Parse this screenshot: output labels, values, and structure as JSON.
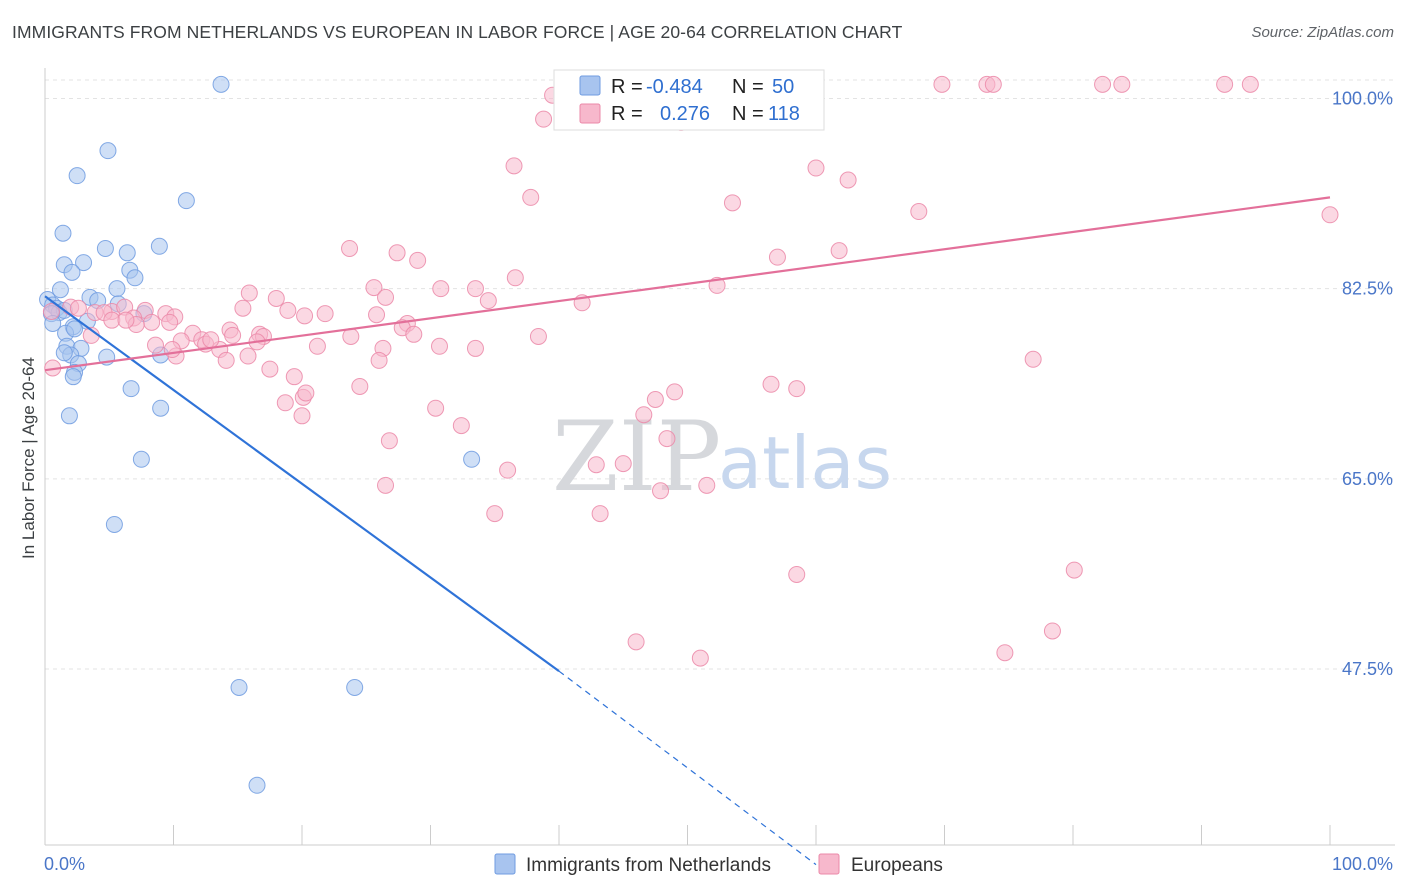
{
  "title": "IMMIGRANTS FROM NETHERLANDS VS EUROPEAN IN LABOR FORCE | AGE 20-64 CORRELATION CHART",
  "source": "Source: ZipAtlas.com",
  "watermark": {
    "zip": "ZIP",
    "atlas": "atlas"
  },
  "legend": {
    "r_label": "R =",
    "n_label": "N =",
    "rows": [
      {
        "r": "-0.484",
        "n": "50",
        "color": "#a8c4ef",
        "stroke": "#6f9be0"
      },
      {
        "r": "0.276",
        "n": "118",
        "color": "#f7b8cc",
        "stroke": "#eb88a8"
      }
    ]
  },
  "bottom_legend": {
    "items": [
      {
        "label": "Immigrants from Netherlands",
        "color": "#a8c4ef",
        "stroke": "#6f9be0"
      },
      {
        "label": "Europeans",
        "color": "#f7b8cc",
        "stroke": "#eb88a8"
      }
    ]
  },
  "chart_data": {
    "type": "scatter",
    "title": "IMMIGRANTS FROM NETHERLANDS VS EUROPEAN IN LABOR FORCE | AGE 20-64 CORRELATION CHART",
    "xlabel": "",
    "ylabel": "In Labor Force | Age 20-64",
    "xlim": [
      0,
      105
    ],
    "ylim": [
      29,
      101.5
    ],
    "x_tick_labels": [
      "0.0%",
      "100.0%"
    ],
    "y_ticks": [
      47.5,
      65.0,
      82.5,
      100.0
    ],
    "y_tick_labels": [
      "47.5%",
      "65.0%",
      "82.5%",
      "100.0%"
    ],
    "grid": true,
    "series": [
      {
        "name": "Immigrants from Netherlands",
        "color": "#6f9be0",
        "fill": "#a8c4ef",
        "points": [
          [
            13.7,
            101.3
          ],
          [
            4.9,
            95.2
          ],
          [
            2.5,
            92.9
          ],
          [
            11.0,
            90.6
          ],
          [
            1.4,
            87.6
          ],
          [
            4.7,
            86.2
          ],
          [
            8.9,
            86.4
          ],
          [
            1.5,
            84.7
          ],
          [
            3.0,
            84.9
          ],
          [
            6.4,
            85.8
          ],
          [
            2.1,
            84.0
          ],
          [
            6.6,
            84.2
          ],
          [
            7.0,
            83.5
          ],
          [
            5.6,
            82.5
          ],
          [
            1.2,
            82.4
          ],
          [
            0.2,
            81.5
          ],
          [
            0.6,
            81.0
          ],
          [
            3.5,
            81.7
          ],
          [
            4.1,
            81.4
          ],
          [
            5.7,
            81.1
          ],
          [
            0.9,
            80.7
          ],
          [
            1.1,
            80.3
          ],
          [
            1.5,
            80.5
          ],
          [
            0.5,
            80.2
          ],
          [
            7.7,
            80.2
          ],
          [
            0.6,
            79.3
          ],
          [
            3.3,
            79.5
          ],
          [
            2.2,
            79.0
          ],
          [
            1.6,
            78.4
          ],
          [
            2.3,
            78.8
          ],
          [
            1.7,
            77.2
          ],
          [
            2.8,
            77.0
          ],
          [
            2.0,
            76.4
          ],
          [
            1.5,
            76.6
          ],
          [
            4.8,
            76.2
          ],
          [
            9.0,
            76.4
          ],
          [
            2.6,
            75.6
          ],
          [
            2.3,
            74.8
          ],
          [
            2.2,
            74.4
          ],
          [
            6.7,
            73.3
          ],
          [
            9.0,
            71.5
          ],
          [
            1.9,
            70.8
          ],
          [
            7.5,
            66.8
          ],
          [
            33.2,
            66.8
          ],
          [
            5.4,
            60.8
          ],
          [
            15.1,
            45.8
          ],
          [
            24.1,
            45.8
          ],
          [
            16.5,
            36.8
          ]
        ]
      },
      {
        "name": "Europeans",
        "color": "#eb88a8",
        "fill": "#f7b8cc",
        "points": [
          [
            40.8,
            101.3
          ],
          [
            41.2,
            101.3
          ],
          [
            49.5,
            101.3
          ],
          [
            49.8,
            101.3
          ],
          [
            50.2,
            101.3
          ],
          [
            56.5,
            101.3
          ],
          [
            57.0,
            101.3
          ],
          [
            57.3,
            101.3
          ],
          [
            69.8,
            101.3
          ],
          [
            73.3,
            101.3
          ],
          [
            73.8,
            101.3
          ],
          [
            82.3,
            101.3
          ],
          [
            83.8,
            101.3
          ],
          [
            91.8,
            101.3
          ],
          [
            93.8,
            101.3
          ],
          [
            39.5,
            100.3
          ],
          [
            43.8,
            99.9
          ],
          [
            38.8,
            98.1
          ],
          [
            49.5,
            97.8
          ],
          [
            36.5,
            93.8
          ],
          [
            60.0,
            93.6
          ],
          [
            62.5,
            92.5
          ],
          [
            37.8,
            90.9
          ],
          [
            53.5,
            90.4
          ],
          [
            68.0,
            89.6
          ],
          [
            100.0,
            89.3
          ],
          [
            23.7,
            86.2
          ],
          [
            27.4,
            85.8
          ],
          [
            57.0,
            85.4
          ],
          [
            61.8,
            86.0
          ],
          [
            29.0,
            85.1
          ],
          [
            36.6,
            83.5
          ],
          [
            25.6,
            82.6
          ],
          [
            30.8,
            82.5
          ],
          [
            33.5,
            82.5
          ],
          [
            15.9,
            82.1
          ],
          [
            52.3,
            82.8
          ],
          [
            18.0,
            81.6
          ],
          [
            26.5,
            81.7
          ],
          [
            34.5,
            81.4
          ],
          [
            41.8,
            81.2
          ],
          [
            15.4,
            80.7
          ],
          [
            18.9,
            80.5
          ],
          [
            25.8,
            80.1
          ],
          [
            21.8,
            80.2
          ],
          [
            28.2,
            79.3
          ],
          [
            20.2,
            80.0
          ],
          [
            7.8,
            80.5
          ],
          [
            9.4,
            80.2
          ],
          [
            10.1,
            79.9
          ],
          [
            11.5,
            78.4
          ],
          [
            12.2,
            77.8
          ],
          [
            27.8,
            78.9
          ],
          [
            28.7,
            78.3
          ],
          [
            16.7,
            78.3
          ],
          [
            17.0,
            78.1
          ],
          [
            23.8,
            78.1
          ],
          [
            2.0,
            80.8
          ],
          [
            2.6,
            80.7
          ],
          [
            3.9,
            80.3
          ],
          [
            5.2,
            80.4
          ],
          [
            6.2,
            80.8
          ],
          [
            4.6,
            80.3
          ],
          [
            5.2,
            79.6
          ],
          [
            6.9,
            79.8
          ],
          [
            8.3,
            79.4
          ],
          [
            7.1,
            79.2
          ],
          [
            6.3,
            79.6
          ],
          [
            9.7,
            79.4
          ],
          [
            14.4,
            78.7
          ],
          [
            14.6,
            78.2
          ],
          [
            3.6,
            78.2
          ],
          [
            12.5,
            77.4
          ],
          [
            26.3,
            77.0
          ],
          [
            21.2,
            77.2
          ],
          [
            13.6,
            76.9
          ],
          [
            8.6,
            77.3
          ],
          [
            10.6,
            77.7
          ],
          [
            12.9,
            77.8
          ],
          [
            30.7,
            77.2
          ],
          [
            38.4,
            78.1
          ],
          [
            33.5,
            77.0
          ],
          [
            15.8,
            76.3
          ],
          [
            16.5,
            77.6
          ],
          [
            10.2,
            76.3
          ],
          [
            14.1,
            75.9
          ],
          [
            26.0,
            75.9
          ],
          [
            17.5,
            75.1
          ],
          [
            9.9,
            76.9
          ],
          [
            0.5,
            80.4
          ],
          [
            0.6,
            75.2
          ],
          [
            19.4,
            74.4
          ],
          [
            24.5,
            73.5
          ],
          [
            56.5,
            73.7
          ],
          [
            58.5,
            73.3
          ],
          [
            49.0,
            73.0
          ],
          [
            47.5,
            72.3
          ],
          [
            18.7,
            72.0
          ],
          [
            20.1,
            72.5
          ],
          [
            20.3,
            72.9
          ],
          [
            20.0,
            70.8
          ],
          [
            46.6,
            70.9
          ],
          [
            45.0,
            66.4
          ],
          [
            26.8,
            68.5
          ],
          [
            42.9,
            66.3
          ],
          [
            48.4,
            68.7
          ],
          [
            32.4,
            69.9
          ],
          [
            30.4,
            71.5
          ],
          [
            36.0,
            65.8
          ],
          [
            26.5,
            64.4
          ],
          [
            51.5,
            64.4
          ],
          [
            35.0,
            61.8
          ],
          [
            43.2,
            61.8
          ],
          [
            47.9,
            63.9
          ],
          [
            46.0,
            50.0
          ],
          [
            51.0,
            48.5
          ],
          [
            58.5,
            56.2
          ],
          [
            78.4,
            51.0
          ],
          [
            80.1,
            56.6
          ],
          [
            74.7,
            49.0
          ],
          [
            76.9,
            76.0
          ]
        ]
      }
    ],
    "trendlines": [
      {
        "series": "Immigrants from Netherlands",
        "solid": [
          [
            0,
            81.8
          ],
          [
            40.0,
            47.3
          ]
        ],
        "dashed": [
          [
            40.0,
            47.3
          ],
          [
            60.0,
            29.5
          ]
        ]
      },
      {
        "series": "Europeans",
        "solid": [
          [
            0,
            75.0
          ],
          [
            100,
            90.9
          ]
        ]
      }
    ]
  }
}
